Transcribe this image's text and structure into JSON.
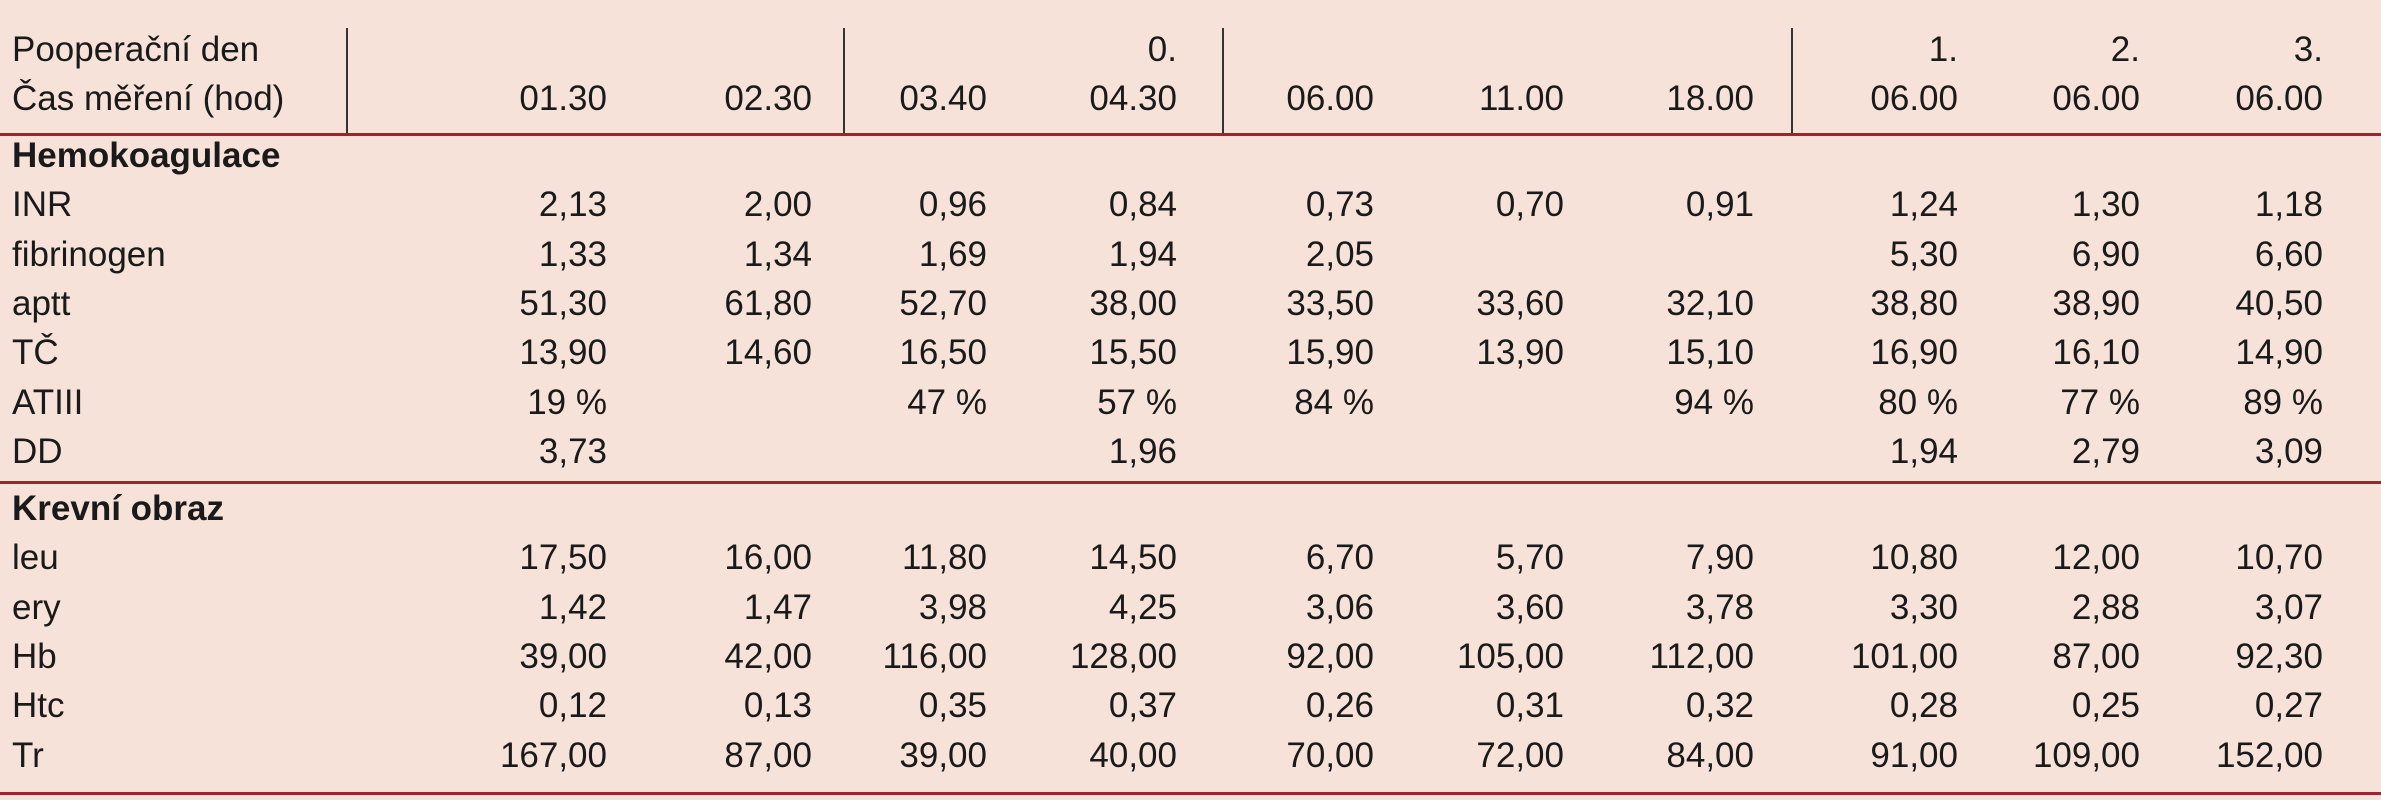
{
  "header": {
    "day_label": "Pooperační den",
    "time_label": "Čas měření (hod)",
    "days": [
      null,
      null,
      null,
      "0.",
      null,
      null,
      null,
      "1.",
      "2.",
      "3."
    ],
    "times": [
      "01.30",
      "02.30",
      "03.40",
      "04.30",
      "06.00",
      "11.00",
      "18.00",
      "06.00",
      "06.00",
      "06.00"
    ]
  },
  "sections": [
    {
      "title": "Hemokoagulace",
      "rows": [
        {
          "label": "INR",
          "values": [
            "2,13",
            "2,00",
            "0,96",
            "0,84",
            "0,73",
            "0,70",
            "0,91",
            "1,24",
            "1,30",
            "1,18"
          ]
        },
        {
          "label": "fibrinogen",
          "values": [
            "1,33",
            "1,34",
            "1,69",
            "1,94",
            "2,05",
            null,
            null,
            "5,30",
            "6,90",
            "6,60"
          ]
        },
        {
          "label": "aptt",
          "values": [
            "51,30",
            "61,80",
            "52,70",
            "38,00",
            "33,50",
            "33,60",
            "32,10",
            "38,80",
            "38,90",
            "40,50"
          ]
        },
        {
          "label": "TČ",
          "values": [
            "13,90",
            "14,60",
            "16,50",
            "15,50",
            "15,90",
            "13,90",
            "15,10",
            "16,90",
            "16,10",
            "14,90"
          ]
        },
        {
          "label": "ATIII",
          "values": [
            "19 %",
            null,
            "47 %",
            "57 %",
            "84 %",
            null,
            "94 %",
            "80 %",
            "77 %",
            "89 %"
          ]
        },
        {
          "label": "DD",
          "values": [
            "3,73",
            null,
            null,
            "1,96",
            null,
            null,
            null,
            "1,94",
            "2,79",
            "3,09"
          ]
        }
      ]
    },
    {
      "title": "Krevní obraz",
      "rows": [
        {
          "label": "leu",
          "values": [
            "17,50",
            "16,00",
            "11,80",
            "14,50",
            "6,70",
            "5,70",
            "7,90",
            "10,80",
            "12,00",
            "10,70"
          ]
        },
        {
          "label": "ery",
          "values": [
            "1,42",
            "1,47",
            "3,98",
            "4,25",
            "3,06",
            "3,60",
            "3,78",
            "3,30",
            "2,88",
            "3,07"
          ]
        },
        {
          "label": "Hb",
          "values": [
            "39,00",
            "42,00",
            "116,00",
            "128,00",
            "92,00",
            "105,00",
            "112,00",
            "101,00",
            "87,00",
            "92,30"
          ]
        },
        {
          "label": "Htc",
          "values": [
            "0,12",
            "0,13",
            "0,35",
            "0,37",
            "0,26",
            "0,31",
            "0,32",
            "0,28",
            "0,25",
            "0,27"
          ]
        },
        {
          "label": "Tr",
          "values": [
            "167,00",
            "87,00",
            "39,00",
            "40,00",
            "70,00",
            "72,00",
            "84,00",
            "91,00",
            "109,00",
            "152,00"
          ]
        }
      ]
    }
  ]
}
